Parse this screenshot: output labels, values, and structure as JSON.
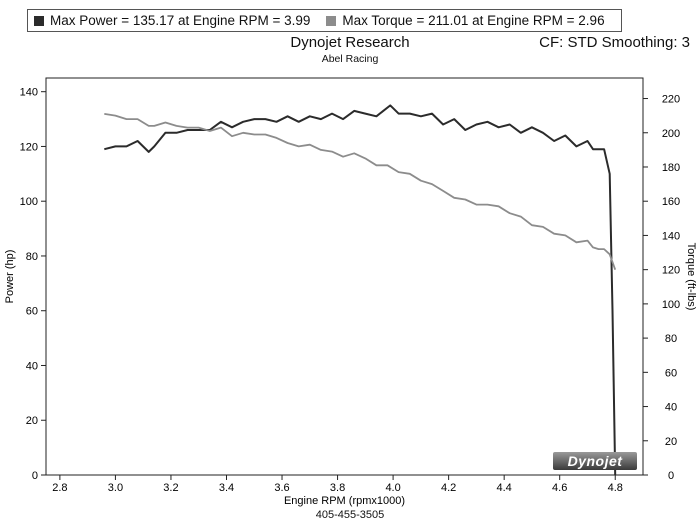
{
  "legend": {
    "power_label": "Max Power = 135.17 at Engine RPM = 3.99",
    "torque_label": "Max Torque = 211.01 at Engine RPM = 2.96",
    "power_color": "#2b2b2b",
    "torque_color": "#8c8c8c"
  },
  "header": {
    "title": "Dynojet Research",
    "subtitle": "Abel Racing",
    "cf_label": "CF: STD Smoothing: 3"
  },
  "footer": {
    "phone": "405-455-3505"
  },
  "logo": {
    "text": "Dynojet"
  },
  "chart_data": {
    "type": "line",
    "title": "Dynojet Research",
    "xlabel": "Engine RPM (rpmx1000)",
    "ylabel": "Power (hp)",
    "y2label": "Torque (ft-lbs)",
    "xlim": [
      2.75,
      4.9
    ],
    "ylim": [
      0,
      145
    ],
    "y2lim": [
      0,
      232
    ],
    "xticks": [
      "2.8",
      "3.0",
      "3.2",
      "3.4",
      "3.6",
      "3.8",
      "4.0",
      "4.2",
      "4.4",
      "4.6",
      "4.8"
    ],
    "yticks": [
      "0",
      "20",
      "40",
      "60",
      "80",
      "100",
      "120",
      "140"
    ],
    "y2ticks": [
      "0",
      "20",
      "40",
      "60",
      "80",
      "100",
      "120",
      "140",
      "160",
      "180",
      "200",
      "220"
    ],
    "grid": false,
    "series": [
      {
        "name": "Power",
        "axis": "left",
        "x": [
          2.96,
          3.0,
          3.04,
          3.08,
          3.12,
          3.14,
          3.18,
          3.22,
          3.26,
          3.3,
          3.34,
          3.38,
          3.42,
          3.46,
          3.5,
          3.54,
          3.58,
          3.62,
          3.66,
          3.7,
          3.74,
          3.78,
          3.82,
          3.86,
          3.9,
          3.94,
          3.99,
          4.02,
          4.06,
          4.1,
          4.14,
          4.18,
          4.22,
          4.26,
          4.3,
          4.34,
          4.38,
          4.42,
          4.46,
          4.5,
          4.54,
          4.58,
          4.62,
          4.66,
          4.7,
          4.72,
          4.74,
          4.76,
          4.78,
          4.79,
          4.8
        ],
        "values": [
          119,
          120,
          120,
          122,
          118,
          120,
          125,
          125,
          126,
          126,
          126,
          129,
          127,
          129,
          130,
          130,
          129,
          131,
          129,
          131,
          130,
          132,
          130,
          133,
          132,
          131,
          135,
          132,
          132,
          131,
          132,
          128,
          130,
          126,
          128,
          129,
          127,
          128,
          125,
          127,
          125,
          122,
          124,
          120,
          122,
          119,
          119,
          119,
          110,
          60,
          0
        ]
      },
      {
        "name": "Torque",
        "axis": "right",
        "x": [
          2.96,
          3.0,
          3.04,
          3.08,
          3.12,
          3.14,
          3.18,
          3.22,
          3.26,
          3.3,
          3.34,
          3.38,
          3.42,
          3.46,
          3.5,
          3.54,
          3.58,
          3.62,
          3.66,
          3.7,
          3.74,
          3.78,
          3.82,
          3.86,
          3.9,
          3.94,
          3.98,
          4.02,
          4.06,
          4.1,
          4.14,
          4.18,
          4.22,
          4.26,
          4.3,
          4.34,
          4.38,
          4.42,
          4.46,
          4.5,
          4.54,
          4.58,
          4.62,
          4.66,
          4.7,
          4.72,
          4.74,
          4.76,
          4.78,
          4.8
        ],
        "values": [
          211,
          210,
          208,
          208,
          204,
          204,
          206,
          204,
          203,
          203,
          201,
          203,
          198,
          200,
          199,
          199,
          197,
          194,
          192,
          193,
          190,
          189,
          186,
          188,
          185,
          181,
          181,
          177,
          176,
          172,
          170,
          166,
          162,
          161,
          158,
          158,
          157,
          153,
          151,
          146,
          145,
          141,
          140,
          136,
          137,
          133,
          132,
          132,
          129,
          120
        ]
      }
    ]
  }
}
